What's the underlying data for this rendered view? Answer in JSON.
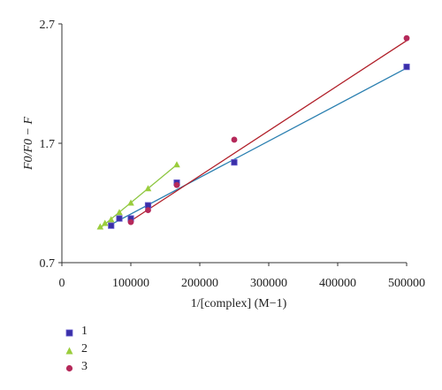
{
  "chart_data": {
    "type": "scatter",
    "xlabel": "1/[complex] (M−1)",
    "ylabel": "F0/F0 − F",
    "xlim": [
      0,
      500000
    ],
    "ylim": [
      0.7,
      2.7
    ],
    "xticks": [
      0,
      100000,
      200000,
      300000,
      400000,
      500000
    ],
    "yticks": [
      0.7,
      1.7,
      2.7
    ],
    "x_tick_labels": [
      "0",
      "100000",
      "200000",
      "300000",
      "400000",
      "500000"
    ],
    "y_tick_labels": [
      "0.7",
      "1.7",
      "2.7"
    ],
    "grid": false,
    "legend_position": "bottom-left",
    "series": [
      {
        "name": "1",
        "marker": "square",
        "color": "#3a2fa8",
        "line_color": "#2a7fb0",
        "points": [
          [
            71429,
            1.01
          ],
          [
            83333,
            1.07
          ],
          [
            100000,
            1.07
          ],
          [
            125000,
            1.18
          ],
          [
            166667,
            1.37
          ],
          [
            250000,
            1.54
          ],
          [
            500000,
            2.34
          ]
        ],
        "fit": [
          [
            71429,
            1.02
          ],
          [
            500000,
            2.33
          ]
        ]
      },
      {
        "name": "2",
        "marker": "triangle",
        "color": "#9acd3c",
        "line_color": "#8cc63f",
        "points": [
          [
            55556,
            1.0
          ],
          [
            62500,
            1.03
          ],
          [
            71429,
            1.06
          ],
          [
            83333,
            1.12
          ],
          [
            100000,
            1.2
          ],
          [
            125000,
            1.32
          ],
          [
            166667,
            1.52
          ]
        ],
        "fit": [
          [
            55556,
            0.99
          ],
          [
            166667,
            1.52
          ]
        ]
      },
      {
        "name": "3",
        "marker": "circle",
        "color": "#b5295a",
        "line_color": "#b01e28",
        "points": [
          [
            100000,
            1.04
          ],
          [
            125000,
            1.14
          ],
          [
            166667,
            1.35
          ],
          [
            250000,
            1.73
          ],
          [
            500000,
            2.58
          ]
        ],
        "fit": [
          [
            100000,
            1.05
          ],
          [
            500000,
            2.56
          ]
        ]
      }
    ]
  }
}
